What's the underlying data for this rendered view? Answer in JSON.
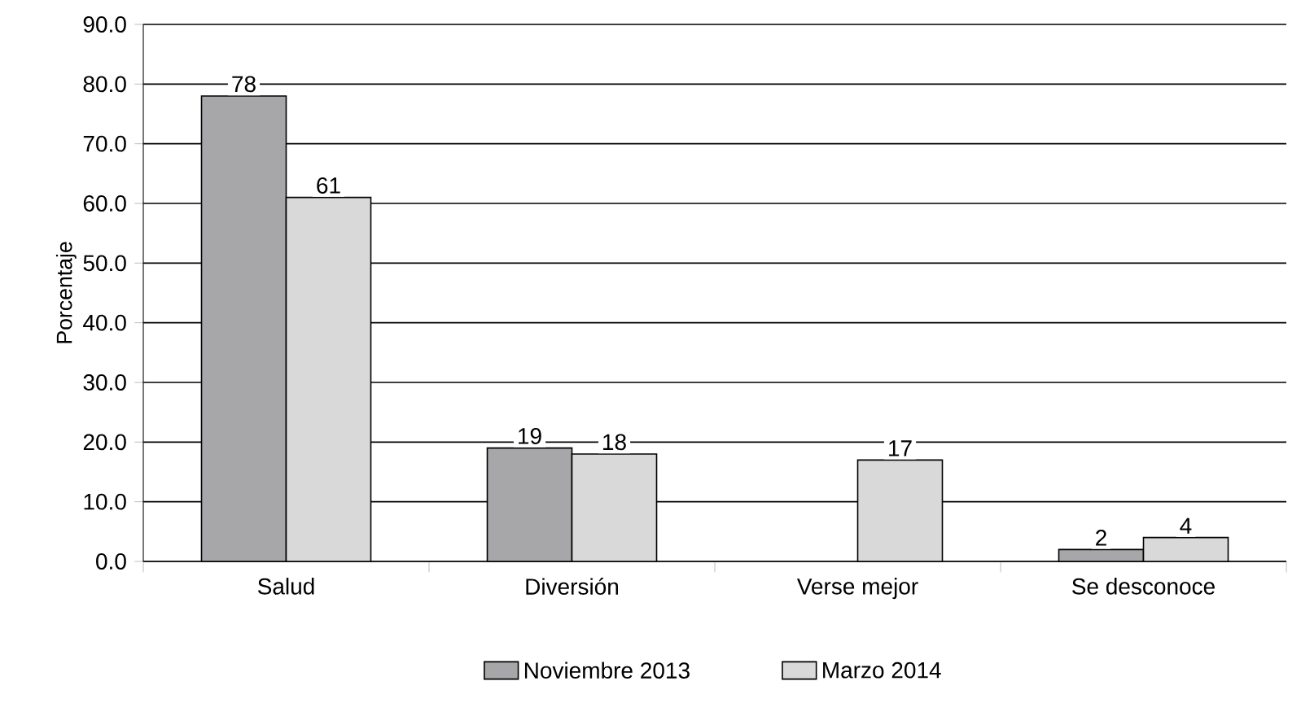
{
  "chart_data": {
    "type": "bar",
    "ylabel": "Porcentaje",
    "categories": [
      "Salud",
      "Diversión",
      "Verse mejor",
      "Se desconoce"
    ],
    "series": [
      {
        "name": "Noviembre 2013",
        "color": "#a7a7a9",
        "values": [
          78,
          19,
          null,
          2
        ]
      },
      {
        "name": "Marzo 2014",
        "color": "#d9d9da",
        "values": [
          61,
          18,
          17,
          4
        ]
      }
    ],
    "ylim": [
      0,
      90
    ],
    "yticks": [
      {
        "value": 0,
        "label": "0.0"
      },
      {
        "value": 10,
        "label": "10.0"
      },
      {
        "value": 20,
        "label": "20.0"
      },
      {
        "value": 30,
        "label": "30.0"
      },
      {
        "value": 40,
        "label": "40.0"
      },
      {
        "value": 50,
        "label": "50.0"
      },
      {
        "value": 60,
        "label": "60.0"
      },
      {
        "value": 70,
        "label": "70.0"
      },
      {
        "value": 80,
        "label": "80.0"
      },
      {
        "value": 90,
        "label": "90.0"
      }
    ],
    "grid": "y",
    "legend": "bottom",
    "data_labels": true
  }
}
